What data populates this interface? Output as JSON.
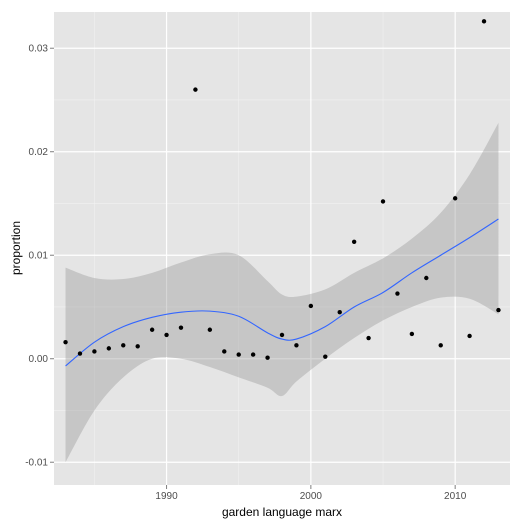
{
  "chart_data": {
    "type": "scatter",
    "title": "",
    "xlabel": "garden language marx",
    "ylabel": "proportion",
    "xlim": [
      1982.2,
      2013.8
    ],
    "ylim": [
      -0.0122,
      0.0335
    ],
    "x_ticks": [
      1990,
      2000,
      2010
    ],
    "x_tick_labels": [
      "1990",
      "2000",
      "2010"
    ],
    "y_ticks": [
      -0.01,
      0,
      0.01,
      0.02,
      0.03
    ],
    "y_tick_labels": [
      "-0.01",
      "0.00",
      "0.01",
      "0.02",
      "0.03"
    ],
    "grid": true,
    "colors": {
      "panel": "#e5e5e5",
      "grid_major": "#ffffff",
      "grid_minor": "#f2f2f2",
      "points": "#000000",
      "smooth_line": "#3366ff",
      "confidence_band": "#999999"
    },
    "points": [
      {
        "x": 1983,
        "y": 0.0016
      },
      {
        "x": 1984,
        "y": 0.0005
      },
      {
        "x": 1985,
        "y": 0.0007
      },
      {
        "x": 1986,
        "y": 0.001
      },
      {
        "x": 1987,
        "y": 0.0013
      },
      {
        "x": 1988,
        "y": 0.0012
      },
      {
        "x": 1989,
        "y": 0.0028
      },
      {
        "x": 1990,
        "y": 0.0023
      },
      {
        "x": 1991,
        "y": 0.003
      },
      {
        "x": 1992,
        "y": 0.026
      },
      {
        "x": 1993,
        "y": 0.0028
      },
      {
        "x": 1994,
        "y": 0.0007
      },
      {
        "x": 1995,
        "y": 0.0004
      },
      {
        "x": 1996,
        "y": 0.0004
      },
      {
        "x": 1997,
        "y": 0.0001
      },
      {
        "x": 1998,
        "y": 0.0023
      },
      {
        "x": 1999,
        "y": 0.0013
      },
      {
        "x": 2000,
        "y": 0.0051
      },
      {
        "x": 2001,
        "y": 0.0002
      },
      {
        "x": 2002,
        "y": 0.0045
      },
      {
        "x": 2003,
        "y": 0.0113
      },
      {
        "x": 2004,
        "y": 0.002
      },
      {
        "x": 2005,
        "y": 0.0152
      },
      {
        "x": 2006,
        "y": 0.0063
      },
      {
        "x": 2007,
        "y": 0.0024
      },
      {
        "x": 2008,
        "y": 0.0078
      },
      {
        "x": 2009,
        "y": 0.0013
      },
      {
        "x": 2010,
        "y": 0.0155
      },
      {
        "x": 2011,
        "y": 0.0022
      },
      {
        "x": 2012,
        "y": 0.0326
      },
      {
        "x": 2013,
        "y": 0.0047
      }
    ],
    "smooth": {
      "x": [
        1983,
        1985,
        1987,
        1989,
        1991,
        1993,
        1995,
        1997,
        1998,
        1999,
        2001,
        2003,
        2005,
        2007,
        2009,
        2011,
        2013
      ],
      "y": [
        -0.0007,
        0.0016,
        0.0031,
        0.004,
        0.0045,
        0.0046,
        0.0041,
        0.0025,
        0.0019,
        0.0019,
        0.0031,
        0.005,
        0.0064,
        0.0083,
        0.01,
        0.0117,
        0.0135
      ],
      "upper": [
        0.0088,
        0.0078,
        0.0077,
        0.0083,
        0.0093,
        0.0101,
        0.01,
        0.0075,
        0.0062,
        0.006,
        0.0067,
        0.0083,
        0.0097,
        0.0116,
        0.0141,
        0.0178,
        0.0228
      ],
      "lower": [
        -0.01,
        -0.005,
        -0.0018,
        0.0,
        0.0,
        -0.0008,
        -0.0018,
        -0.0028,
        -0.0036,
        -0.0022,
        0.0,
        0.002,
        0.0037,
        0.005,
        0.0059,
        0.0058,
        0.0043
      ]
    }
  }
}
